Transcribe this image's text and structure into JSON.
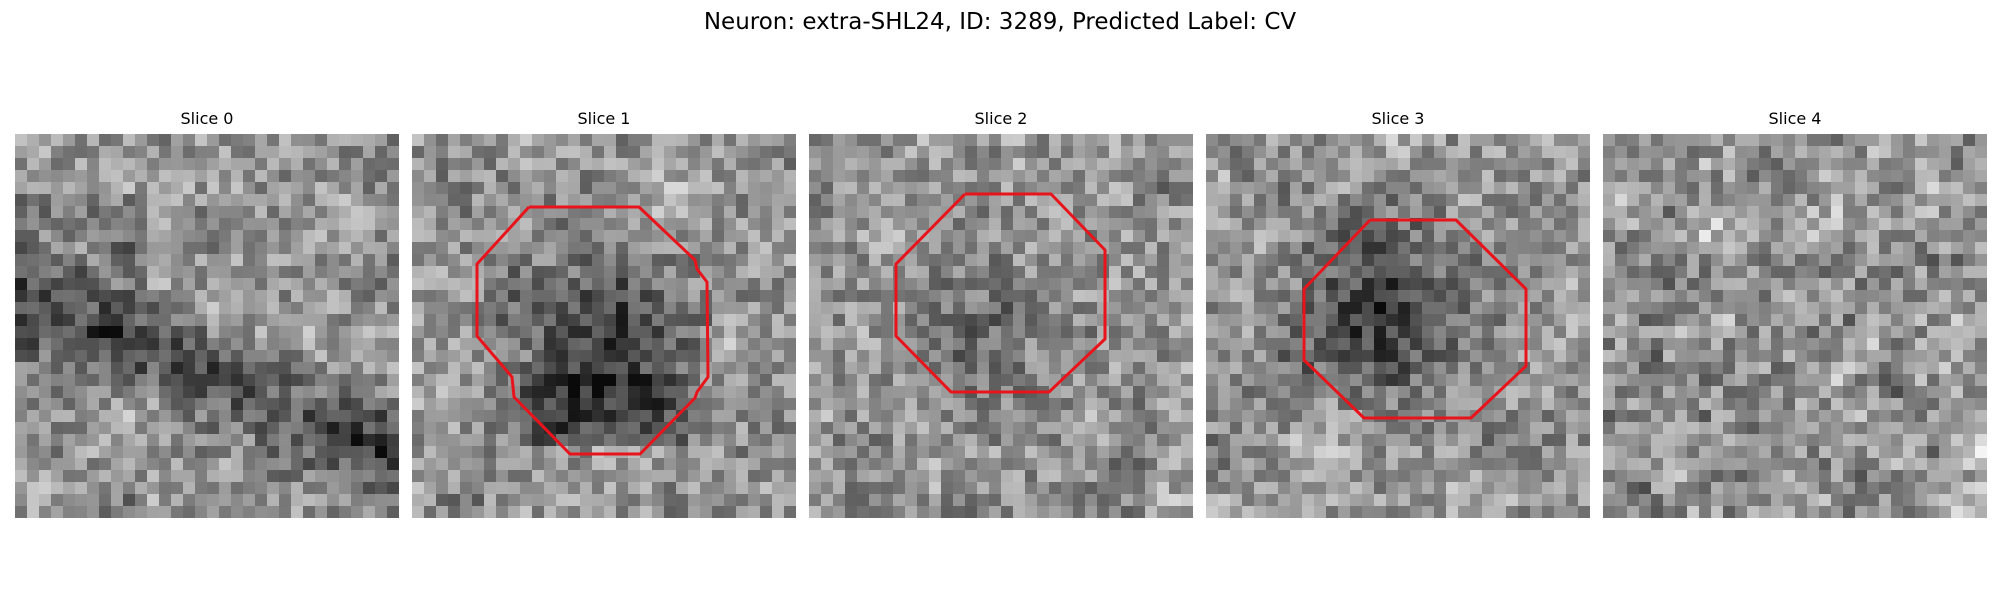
{
  "figure": {
    "title": "Neuron: extra-SHL24, ID: 3289, Predicted Label: CV"
  },
  "slices": [
    {
      "label": "Slice 0",
      "has_outline": false,
      "dark_feature": "diagonal-band"
    },
    {
      "label": "Slice 1",
      "has_outline": true,
      "dark_feature": "round-blob"
    },
    {
      "label": "Slice 2",
      "has_outline": true,
      "dark_feature": "faint-center"
    },
    {
      "label": "Slice 3",
      "has_outline": true,
      "dark_feature": "round-blob"
    },
    {
      "label": "Slice 4",
      "has_outline": false,
      "dark_feature": "noise"
    }
  ],
  "colors": {
    "outline": "#e8141c",
    "background": "#ffffff"
  }
}
